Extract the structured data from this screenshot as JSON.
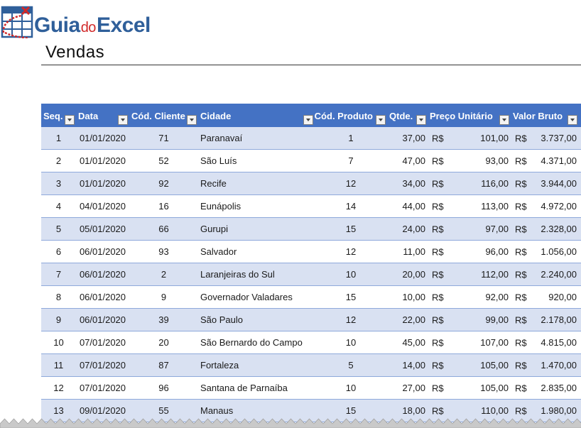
{
  "logo": {
    "part1": "Guia",
    "part2": "do",
    "part3": "Excel"
  },
  "page_title": "Vendas",
  "colors": {
    "header_bg": "#4472c4",
    "band_bg": "#d9e1f2",
    "row_border": "#8ea9db",
    "logo_blue": "#2f5f9a",
    "logo_red": "#d12a2a"
  },
  "table": {
    "headers": [
      "Seq.",
      "Data",
      "Cód. Cliente",
      "Cidade",
      "Cód. Produto",
      "Qtde.",
      "Preço Unitário",
      "Valor Bruto",
      "%"
    ],
    "currency_symbol": "R$",
    "rows": [
      {
        "seq": "1",
        "data": "01/01/2020",
        "cliente": "71",
        "cidade": "Paranavaí",
        "produto": "1",
        "qtde": "37,00",
        "preco": "101,00",
        "valor": "3.737,00"
      },
      {
        "seq": "2",
        "data": "01/01/2020",
        "cliente": "52",
        "cidade": "São Luís",
        "produto": "7",
        "qtde": "47,00",
        "preco": "93,00",
        "valor": "4.371,00"
      },
      {
        "seq": "3",
        "data": "01/01/2020",
        "cliente": "92",
        "cidade": "Recife",
        "produto": "12",
        "qtde": "34,00",
        "preco": "116,00",
        "valor": "3.944,00"
      },
      {
        "seq": "4",
        "data": "04/01/2020",
        "cliente": "16",
        "cidade": "Eunápolis",
        "produto": "14",
        "qtde": "44,00",
        "preco": "113,00",
        "valor": "4.972,00"
      },
      {
        "seq": "5",
        "data": "05/01/2020",
        "cliente": "66",
        "cidade": "Gurupi",
        "produto": "15",
        "qtde": "24,00",
        "preco": "97,00",
        "valor": "2.328,00"
      },
      {
        "seq": "6",
        "data": "06/01/2020",
        "cliente": "93",
        "cidade": "Salvador",
        "produto": "12",
        "qtde": "11,00",
        "preco": "96,00",
        "valor": "1.056,00"
      },
      {
        "seq": "7",
        "data": "06/01/2020",
        "cliente": "2",
        "cidade": "Laranjeiras do Sul",
        "produto": "10",
        "qtde": "20,00",
        "preco": "112,00",
        "valor": "2.240,00"
      },
      {
        "seq": "8",
        "data": "06/01/2020",
        "cliente": "9",
        "cidade": "Governador Valadares",
        "produto": "15",
        "qtde": "10,00",
        "preco": "92,00",
        "valor": "920,00"
      },
      {
        "seq": "9",
        "data": "06/01/2020",
        "cliente": "39",
        "cidade": "São Paulo",
        "produto": "12",
        "qtde": "22,00",
        "preco": "99,00",
        "valor": "2.178,00"
      },
      {
        "seq": "10",
        "data": "07/01/2020",
        "cliente": "20",
        "cidade": "São Bernardo do Campo",
        "produto": "10",
        "qtde": "45,00",
        "preco": "107,00",
        "valor": "4.815,00"
      },
      {
        "seq": "11",
        "data": "07/01/2020",
        "cliente": "87",
        "cidade": "Fortaleza",
        "produto": "5",
        "qtde": "14,00",
        "preco": "105,00",
        "valor": "1.470,00"
      },
      {
        "seq": "12",
        "data": "07/01/2020",
        "cliente": "96",
        "cidade": "Santana de Parnaíba",
        "produto": "10",
        "qtde": "27,00",
        "preco": "105,00",
        "valor": "2.835,00"
      },
      {
        "seq": "13",
        "data": "09/01/2020",
        "cliente": "55",
        "cidade": "Manaus",
        "produto": "15",
        "qtde": "18,00",
        "preco": "110,00",
        "valor": "1.980,00"
      }
    ]
  }
}
